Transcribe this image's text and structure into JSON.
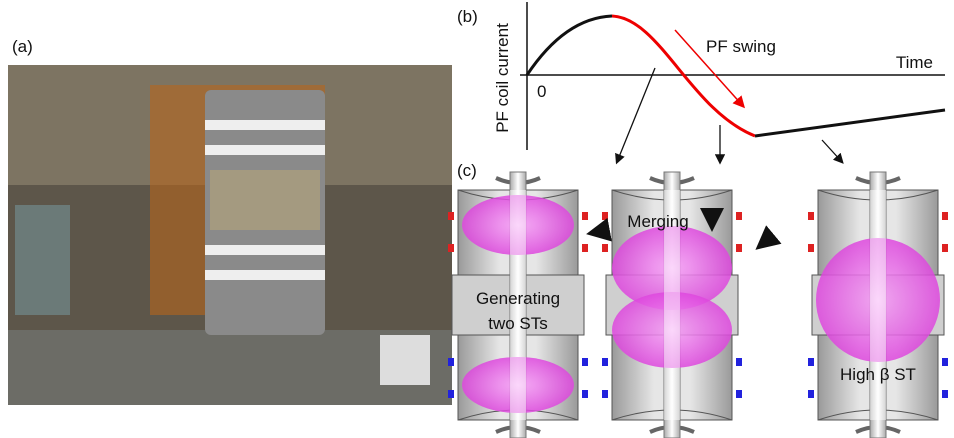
{
  "panels": {
    "a": {
      "label": "(a)"
    },
    "b": {
      "label": "(b)",
      "y_axis_label": "PF coil current",
      "x_axis_label": "Time",
      "origin_label": "0",
      "annotation": "PF swing"
    },
    "c": {
      "label": "(c)",
      "stages": [
        {
          "label_lines": [
            "Generating",
            "two STs"
          ]
        },
        {
          "label_lines": [
            "Merging"
          ]
        },
        {
          "label_lines": [
            "High β ST"
          ]
        }
      ]
    }
  }
}
